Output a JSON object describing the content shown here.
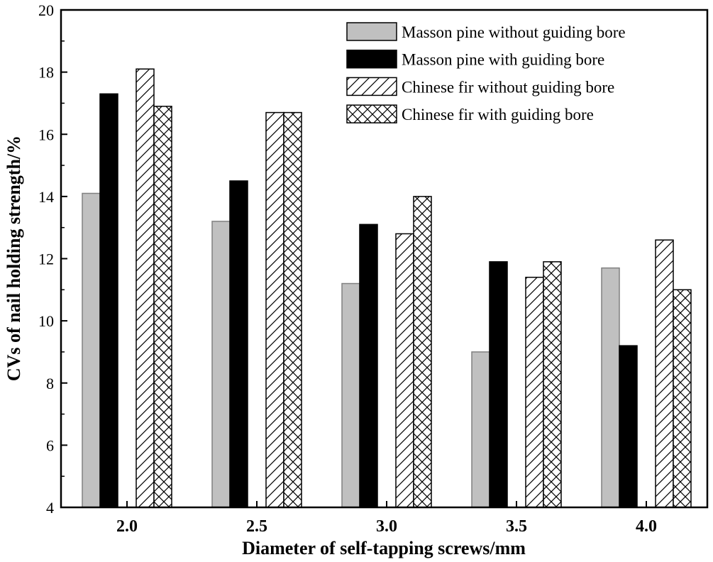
{
  "chart_data": {
    "type": "bar",
    "title": "",
    "xlabel": "Diameter of self-tapping screws/mm",
    "ylabel": "CVs of nail holding strength/%",
    "ylim": [
      4,
      20
    ],
    "yticks": [
      4,
      6,
      8,
      10,
      12,
      14,
      16,
      18,
      20
    ],
    "categories": [
      "2.0",
      "2.5",
      "3.0",
      "3.5",
      "4.0"
    ],
    "legend_position": "top-right",
    "series": [
      {
        "name": "Masson pine without guiding bore",
        "fill": "gray",
        "values": [
          14.1,
          13.2,
          11.2,
          9.0,
          11.7
        ]
      },
      {
        "name": "Masson pine with guiding bore",
        "fill": "black",
        "values": [
          17.3,
          14.5,
          13.1,
          11.9,
          9.2
        ]
      },
      {
        "name": "Chinese fir without guiding bore",
        "fill": "diagonal",
        "values": [
          18.1,
          16.7,
          12.8,
          11.4,
          12.6
        ]
      },
      {
        "name": "Chinese fir with guiding bore",
        "fill": "crosshatch",
        "values": [
          16.9,
          16.7,
          14.0,
          11.9,
          11.0
        ]
      }
    ],
    "colors": {
      "gray": "#c0c0c0",
      "black": "#000000"
    }
  }
}
